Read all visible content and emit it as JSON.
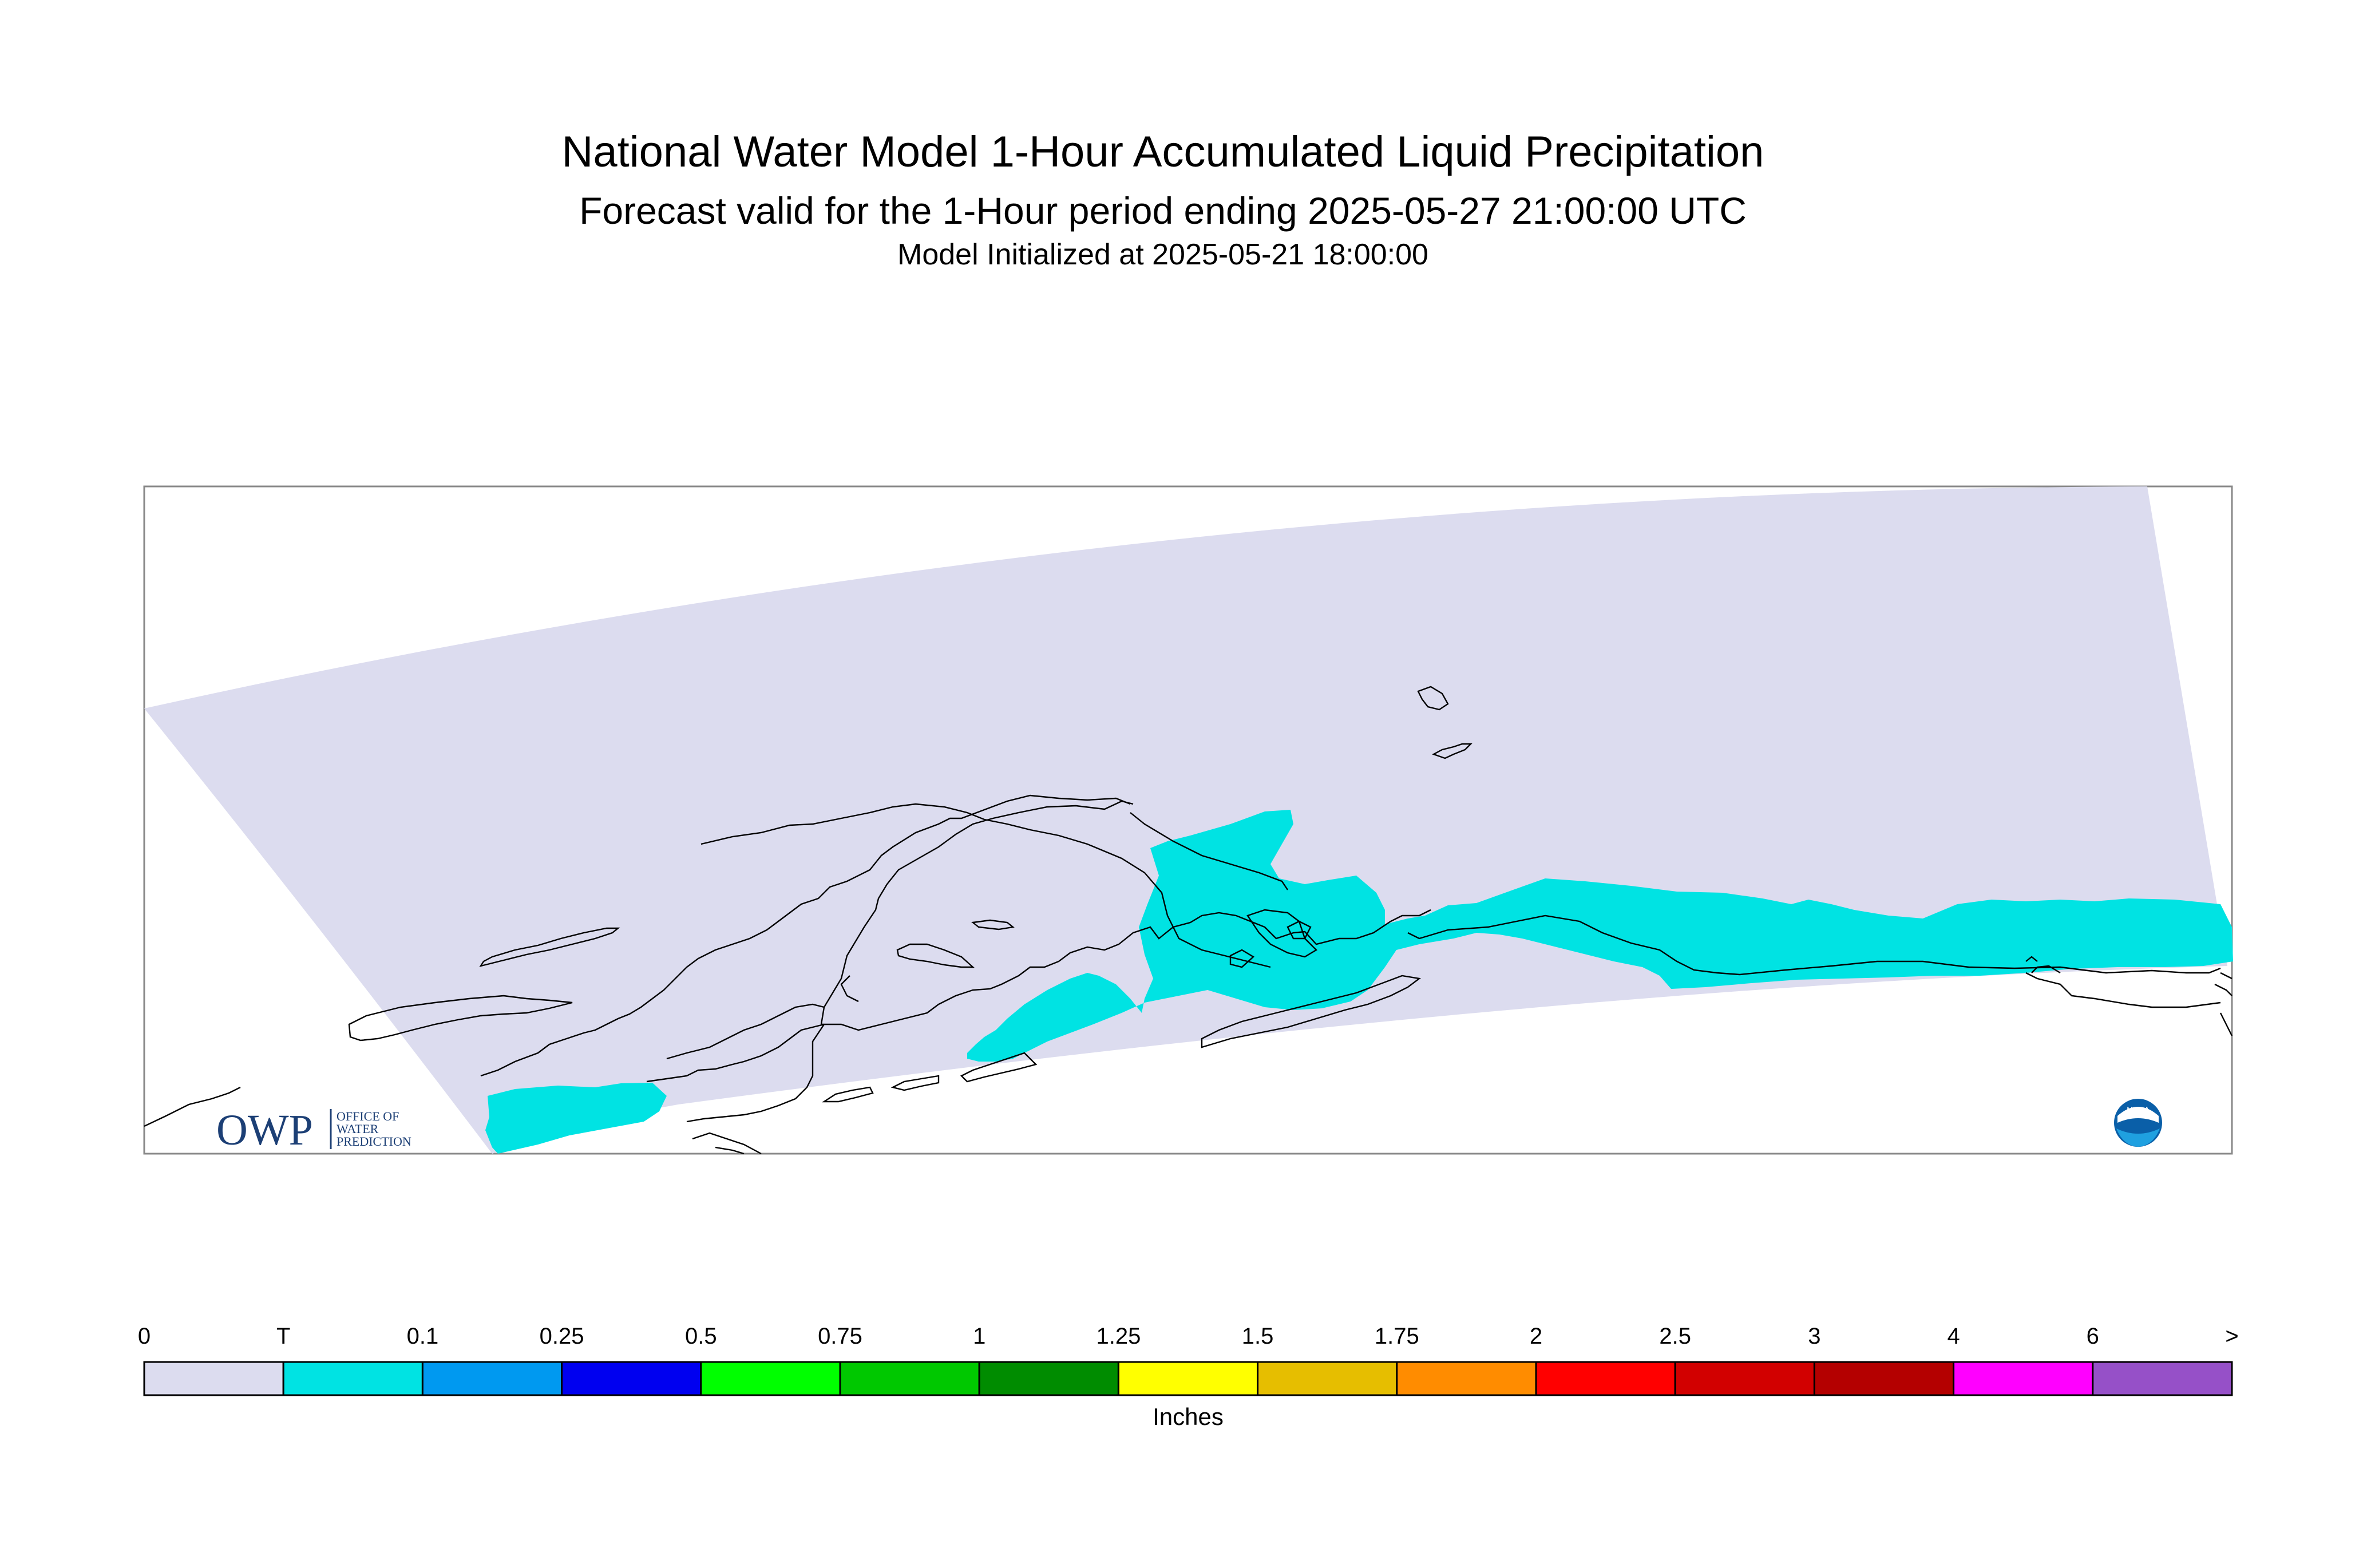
{
  "title": "National Water Model 1-Hour Accumulated Liquid Precipitation",
  "subtitle": "Forecast valid for the 1-Hour period ending 2025-05-27 21:00:00 UTC",
  "init_line": "Model Initialized at 2025-05-21 18:00:00",
  "map": {
    "domain_color": "#dcdcef",
    "precip_color": "#00e3e3",
    "coast_color": "#000000"
  },
  "logo_owp": {
    "mark": "OWP",
    "line1": "OFFICE OF",
    "line2": "WATER",
    "line3": "PREDICTION",
    "color": "#1c3f75"
  },
  "logo_noaa": {
    "text": "NOAA",
    "icon": "noaa-logo-icon"
  },
  "legend": {
    "unit_label": "Inches",
    "labels": [
      "0",
      "T",
      "0.1",
      "0.25",
      "0.5",
      "0.75",
      "1",
      "1.25",
      "1.5",
      "1.75",
      "2",
      "2.5",
      "3",
      "4",
      "6",
      ">"
    ],
    "colors": [
      "#dcdcef",
      "#00e3e3",
      "#0099f0",
      "#0000f0",
      "#00ff00",
      "#00c800",
      "#008c00",
      "#ffff00",
      "#e6be00",
      "#ff8c00",
      "#ff0000",
      "#d20000",
      "#b40000",
      "#ff00ff",
      "#9650c8"
    ]
  }
}
